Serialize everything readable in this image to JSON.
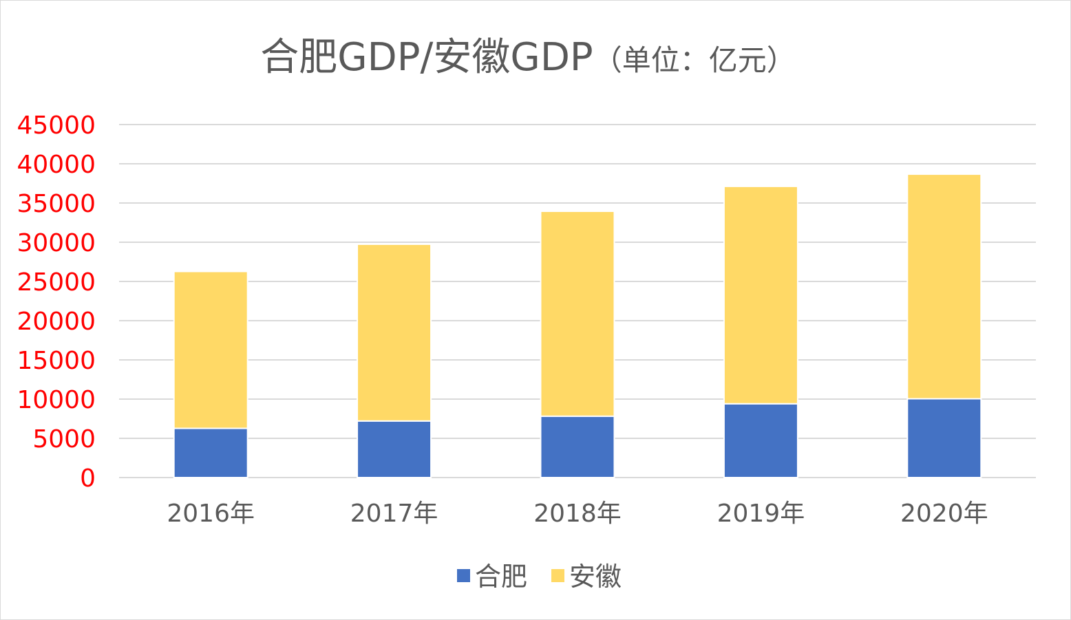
{
  "chart_data": {
    "type": "bar",
    "stacked": true,
    "title": "合肥GDP/安徽GDP",
    "subtitle": "（单位：亿元）",
    "categories": [
      "2016年",
      "2017年",
      "2018年",
      "2019年",
      "2020年"
    ],
    "series": [
      {
        "name": "合肥",
        "color": "#4472c4",
        "values": [
          6270,
          7213,
          7823,
          9409,
          10046
        ]
      },
      {
        "name": "安徽",
        "color": "#ffd966",
        "values": [
          20000,
          22530,
          26120,
          27710,
          28630
        ]
      }
    ],
    "yticks": [
      "0",
      "5000",
      "10000",
      "15000",
      "20000",
      "25000",
      "30000",
      "35000",
      "40000",
      "45000"
    ],
    "ylim": [
      0,
      45000
    ],
    "ytick_step": 5000,
    "ytick_color": "#ff0000",
    "grid": true,
    "legend": "bottom",
    "xlabel": "",
    "ylabel": ""
  }
}
